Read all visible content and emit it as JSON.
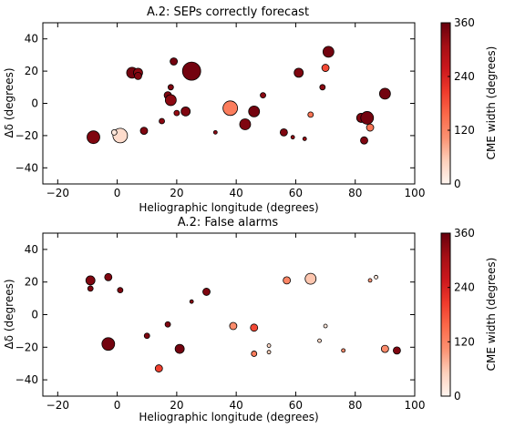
{
  "colorbar": {
    "label": "CME width (degrees)",
    "ticks": [
      0,
      120,
      240,
      360
    ],
    "range": [
      0,
      360
    ],
    "colormap": [
      "#fff5f0",
      "#fdd0bb",
      "#fc9272",
      "#fb6a4a",
      "#ef3b2c",
      "#cb181d",
      "#a50f15",
      "#67000d"
    ]
  },
  "chart_data": [
    {
      "type": "scatter",
      "title": "A.2: SEPs correctly forecast",
      "xlabel": "Heliographic longitude (degrees)",
      "ylabel": "Δδ (degrees)",
      "xlim": [
        -25,
        100
      ],
      "ylim": [
        -50,
        50
      ],
      "xticks": [
        -20,
        0,
        20,
        40,
        60,
        80,
        100
      ],
      "yticks": [
        -40,
        -20,
        0,
        20,
        40
      ],
      "points": [
        {
          "x": -8,
          "y": -21,
          "w": 340,
          "r": 7
        },
        {
          "x": 5,
          "y": 19,
          "w": 350,
          "r": 6
        },
        {
          "x": 7,
          "y": 19,
          "w": 330,
          "r": 5
        },
        {
          "x": 7,
          "y": 17,
          "w": 340,
          "r": 4
        },
        {
          "x": 1,
          "y": -20,
          "w": 35,
          "r": 8
        },
        {
          "x": -1,
          "y": -18,
          "w": 20,
          "r": 3
        },
        {
          "x": 9,
          "y": -17,
          "w": 340,
          "r": 4
        },
        {
          "x": 15,
          "y": -11,
          "w": 330,
          "r": 3
        },
        {
          "x": 19,
          "y": 26,
          "w": 350,
          "r": 4
        },
        {
          "x": 18,
          "y": 10,
          "w": 340,
          "r": 3
        },
        {
          "x": 17,
          "y": 5,
          "w": 340,
          "r": 4
        },
        {
          "x": 18,
          "y": 2,
          "w": 330,
          "r": 6
        },
        {
          "x": 20,
          "y": -6,
          "w": 320,
          "r": 3
        },
        {
          "x": 23,
          "y": -5,
          "w": 340,
          "r": 5
        },
        {
          "x": 25,
          "y": 20,
          "w": 350,
          "r": 10
        },
        {
          "x": 33,
          "y": -18,
          "w": 330,
          "r": 2
        },
        {
          "x": 38,
          "y": -3,
          "w": 130,
          "r": 8
        },
        {
          "x": 43,
          "y": -13,
          "w": 340,
          "r": 6
        },
        {
          "x": 46,
          "y": -5,
          "w": 350,
          "r": 6
        },
        {
          "x": 49,
          "y": 5,
          "w": 330,
          "r": 3
        },
        {
          "x": 56,
          "y": -18,
          "w": 340,
          "r": 4
        },
        {
          "x": 59,
          "y": -21,
          "w": 320,
          "r": 2
        },
        {
          "x": 61,
          "y": 19,
          "w": 340,
          "r": 5
        },
        {
          "x": 63,
          "y": -22,
          "w": 320,
          "r": 2
        },
        {
          "x": 65,
          "y": -7,
          "w": 140,
          "r": 3
        },
        {
          "x": 69,
          "y": 10,
          "w": 330,
          "r": 3
        },
        {
          "x": 70,
          "y": 22,
          "w": 190,
          "r": 4
        },
        {
          "x": 71,
          "y": 32,
          "w": 350,
          "r": 6
        },
        {
          "x": 82,
          "y": -9,
          "w": 340,
          "r": 5
        },
        {
          "x": 84,
          "y": -9,
          "w": 350,
          "r": 7
        },
        {
          "x": 85,
          "y": -15,
          "w": 140,
          "r": 4
        },
        {
          "x": 83,
          "y": -23,
          "w": 340,
          "r": 4
        },
        {
          "x": 90,
          "y": 6,
          "w": 350,
          "r": 6
        }
      ]
    },
    {
      "type": "scatter",
      "title": "A.2: False alarms",
      "xlabel": "Heliographic longitude (degrees)",
      "ylabel": "Δδ (degrees)",
      "xlim": [
        -25,
        100
      ],
      "ylim": [
        -50,
        50
      ],
      "xticks": [
        -20,
        0,
        20,
        40,
        60,
        80,
        100
      ],
      "yticks": [
        -40,
        -20,
        0,
        20,
        40
      ],
      "points": [
        {
          "x": -9,
          "y": 21,
          "w": 340,
          "r": 5
        },
        {
          "x": -9,
          "y": 16,
          "w": 340,
          "r": 3
        },
        {
          "x": -3,
          "y": 23,
          "w": 340,
          "r": 4
        },
        {
          "x": 1,
          "y": 15,
          "w": 340,
          "r": 3
        },
        {
          "x": -3,
          "y": -18,
          "w": 350,
          "r": 7
        },
        {
          "x": 10,
          "y": -13,
          "w": 340,
          "r": 3
        },
        {
          "x": 14,
          "y": -33,
          "w": 200,
          "r": 4
        },
        {
          "x": 17,
          "y": -6,
          "w": 340,
          "r": 3
        },
        {
          "x": 21,
          "y": -21,
          "w": 350,
          "r": 5
        },
        {
          "x": 25,
          "y": 8,
          "w": 330,
          "r": 2
        },
        {
          "x": 30,
          "y": 14,
          "w": 340,
          "r": 4
        },
        {
          "x": 39,
          "y": -7,
          "w": 110,
          "r": 4
        },
        {
          "x": 46,
          "y": -8,
          "w": 190,
          "r": 4
        },
        {
          "x": 46,
          "y": -24,
          "w": 130,
          "r": 3
        },
        {
          "x": 51,
          "y": -19,
          "w": 40,
          "r": 2
        },
        {
          "x": 51,
          "y": -23,
          "w": 50,
          "r": 2
        },
        {
          "x": 57,
          "y": 21,
          "w": 120,
          "r": 4
        },
        {
          "x": 65,
          "y": 22,
          "w": 60,
          "r": 6
        },
        {
          "x": 68,
          "y": -16,
          "w": 40,
          "r": 2
        },
        {
          "x": 70,
          "y": -7,
          "w": 20,
          "r": 2
        },
        {
          "x": 76,
          "y": -22,
          "w": 110,
          "r": 2
        },
        {
          "x": 85,
          "y": 21,
          "w": 100,
          "r": 2
        },
        {
          "x": 87,
          "y": 23,
          "w": 20,
          "r": 2
        },
        {
          "x": 90,
          "y": -21,
          "w": 110,
          "r": 4
        },
        {
          "x": 94,
          "y": -22,
          "w": 340,
          "r": 4
        }
      ]
    }
  ]
}
